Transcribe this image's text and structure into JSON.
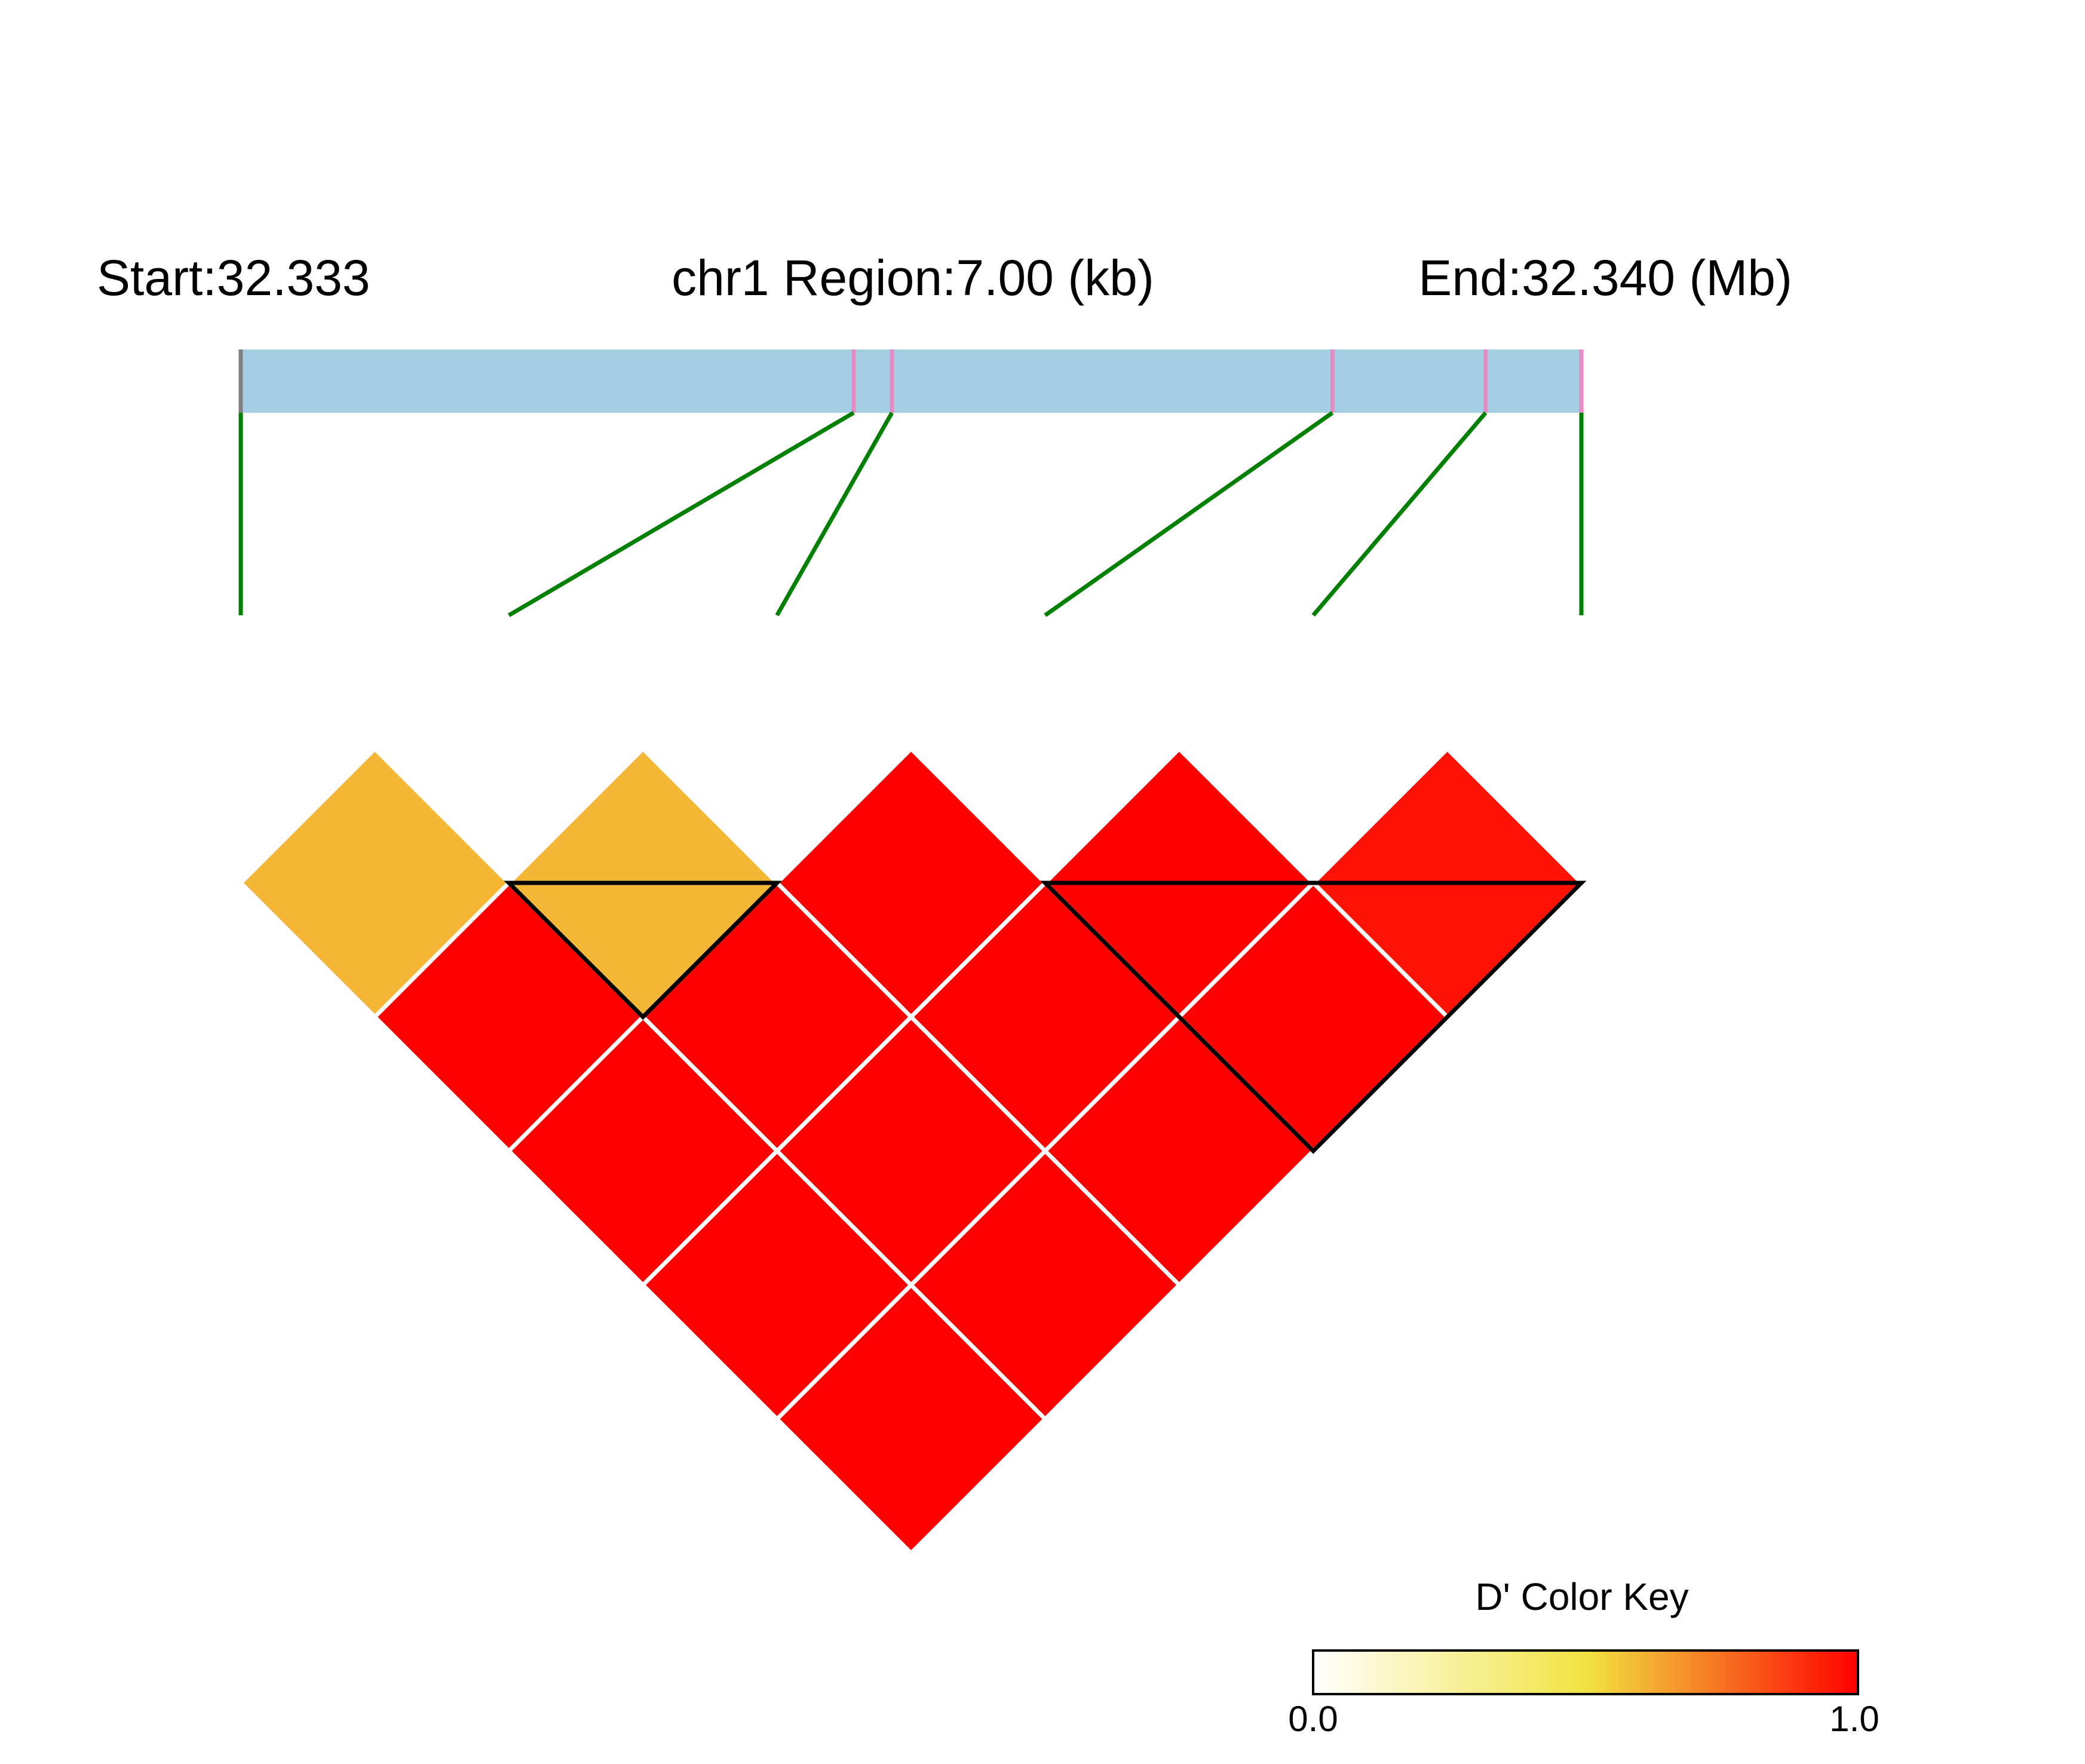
{
  "header": {
    "start_label": "Start:32.333",
    "region_label": "chr1 Region:7.00 (kb)",
    "end_label": "End:32.340 (Mb)"
  },
  "colors": {
    "track": "#a6cee3",
    "snp_tick": "#e78ac3",
    "boundary_tick": "#808080",
    "connector": "#008000",
    "block_outline": "#000000",
    "cell_border": "#ffffff",
    "key_low": "#ffffff",
    "key_mid": "#f0e442",
    "key_high": "#ff0000"
  },
  "chart_data": {
    "type": "heatmap",
    "chromosome": "chr1",
    "region_start_mb": 32.333,
    "region_end_mb": 32.34,
    "region_kb": 7.0,
    "metric": "D'",
    "snp_positions_mb": [
      32.333,
      32.3362,
      32.3364,
      32.3387,
      32.3395,
      32.34
    ],
    "ld_matrix": [
      [
        0.6,
        0.6,
        1.0,
        1.0,
        0.96
      ],
      [
        1.0,
        1.0,
        1.0,
        1.0
      ],
      [
        1.0,
        1.0,
        1.0
      ],
      [
        1.0,
        1.0
      ],
      [
        1.0
      ]
    ],
    "ld_matrix_note": "",
    "haplotype_blocks": [
      [
        1,
        2
      ],
      [
        3,
        5
      ]
    ],
    "color_key": {
      "title": "D' Color Key",
      "min_label": "0.0",
      "max_label": "1.0",
      "range": [
        0.0,
        1.0
      ]
    }
  }
}
